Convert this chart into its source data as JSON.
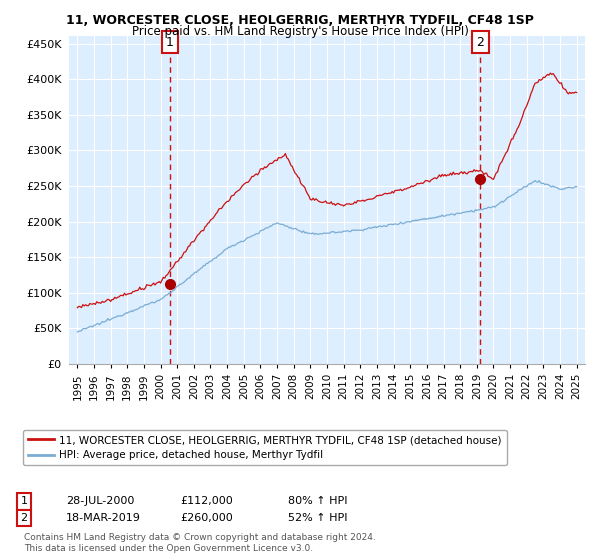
{
  "title1": "11, WORCESTER CLOSE, HEOLGERRIG, MERTHYR TYDFIL, CF48 1SP",
  "title2": "Price paid vs. HM Land Registry's House Price Index (HPI)",
  "legend_line1": "11, WORCESTER CLOSE, HEOLGERRIG, MERTHYR TYDFIL, CF48 1SP (detached house)",
  "legend_line2": "HPI: Average price, detached house, Merthyr Tydfil",
  "sale1_label": "1",
  "sale1_date": "28-JUL-2000",
  "sale1_price": "£112,000",
  "sale1_hpi": "80% ↑ HPI",
  "sale1_x": 2000.57,
  "sale1_y": 112000,
  "sale2_label": "2",
  "sale2_date": "18-MAR-2019",
  "sale2_price": "£260,000",
  "sale2_hpi": "52% ↑ HPI",
  "sale2_x": 2019.21,
  "sale2_y": 260000,
  "hpi_color": "#7aadd4",
  "price_color": "#cc1111",
  "marker_color": "#aa0000",
  "annotation_color": "#cc1111",
  "bg_fill_color": "#ddeeff",
  "ylim": [
    0,
    460000
  ],
  "xlim_left": 1994.5,
  "xlim_right": 2025.5,
  "yticks": [
    0,
    50000,
    100000,
    150000,
    200000,
    250000,
    300000,
    350000,
    400000,
    450000
  ],
  "footer1": "Contains HM Land Registry data © Crown copyright and database right 2024.",
  "footer2": "This data is licensed under the Open Government Licence v3.0."
}
